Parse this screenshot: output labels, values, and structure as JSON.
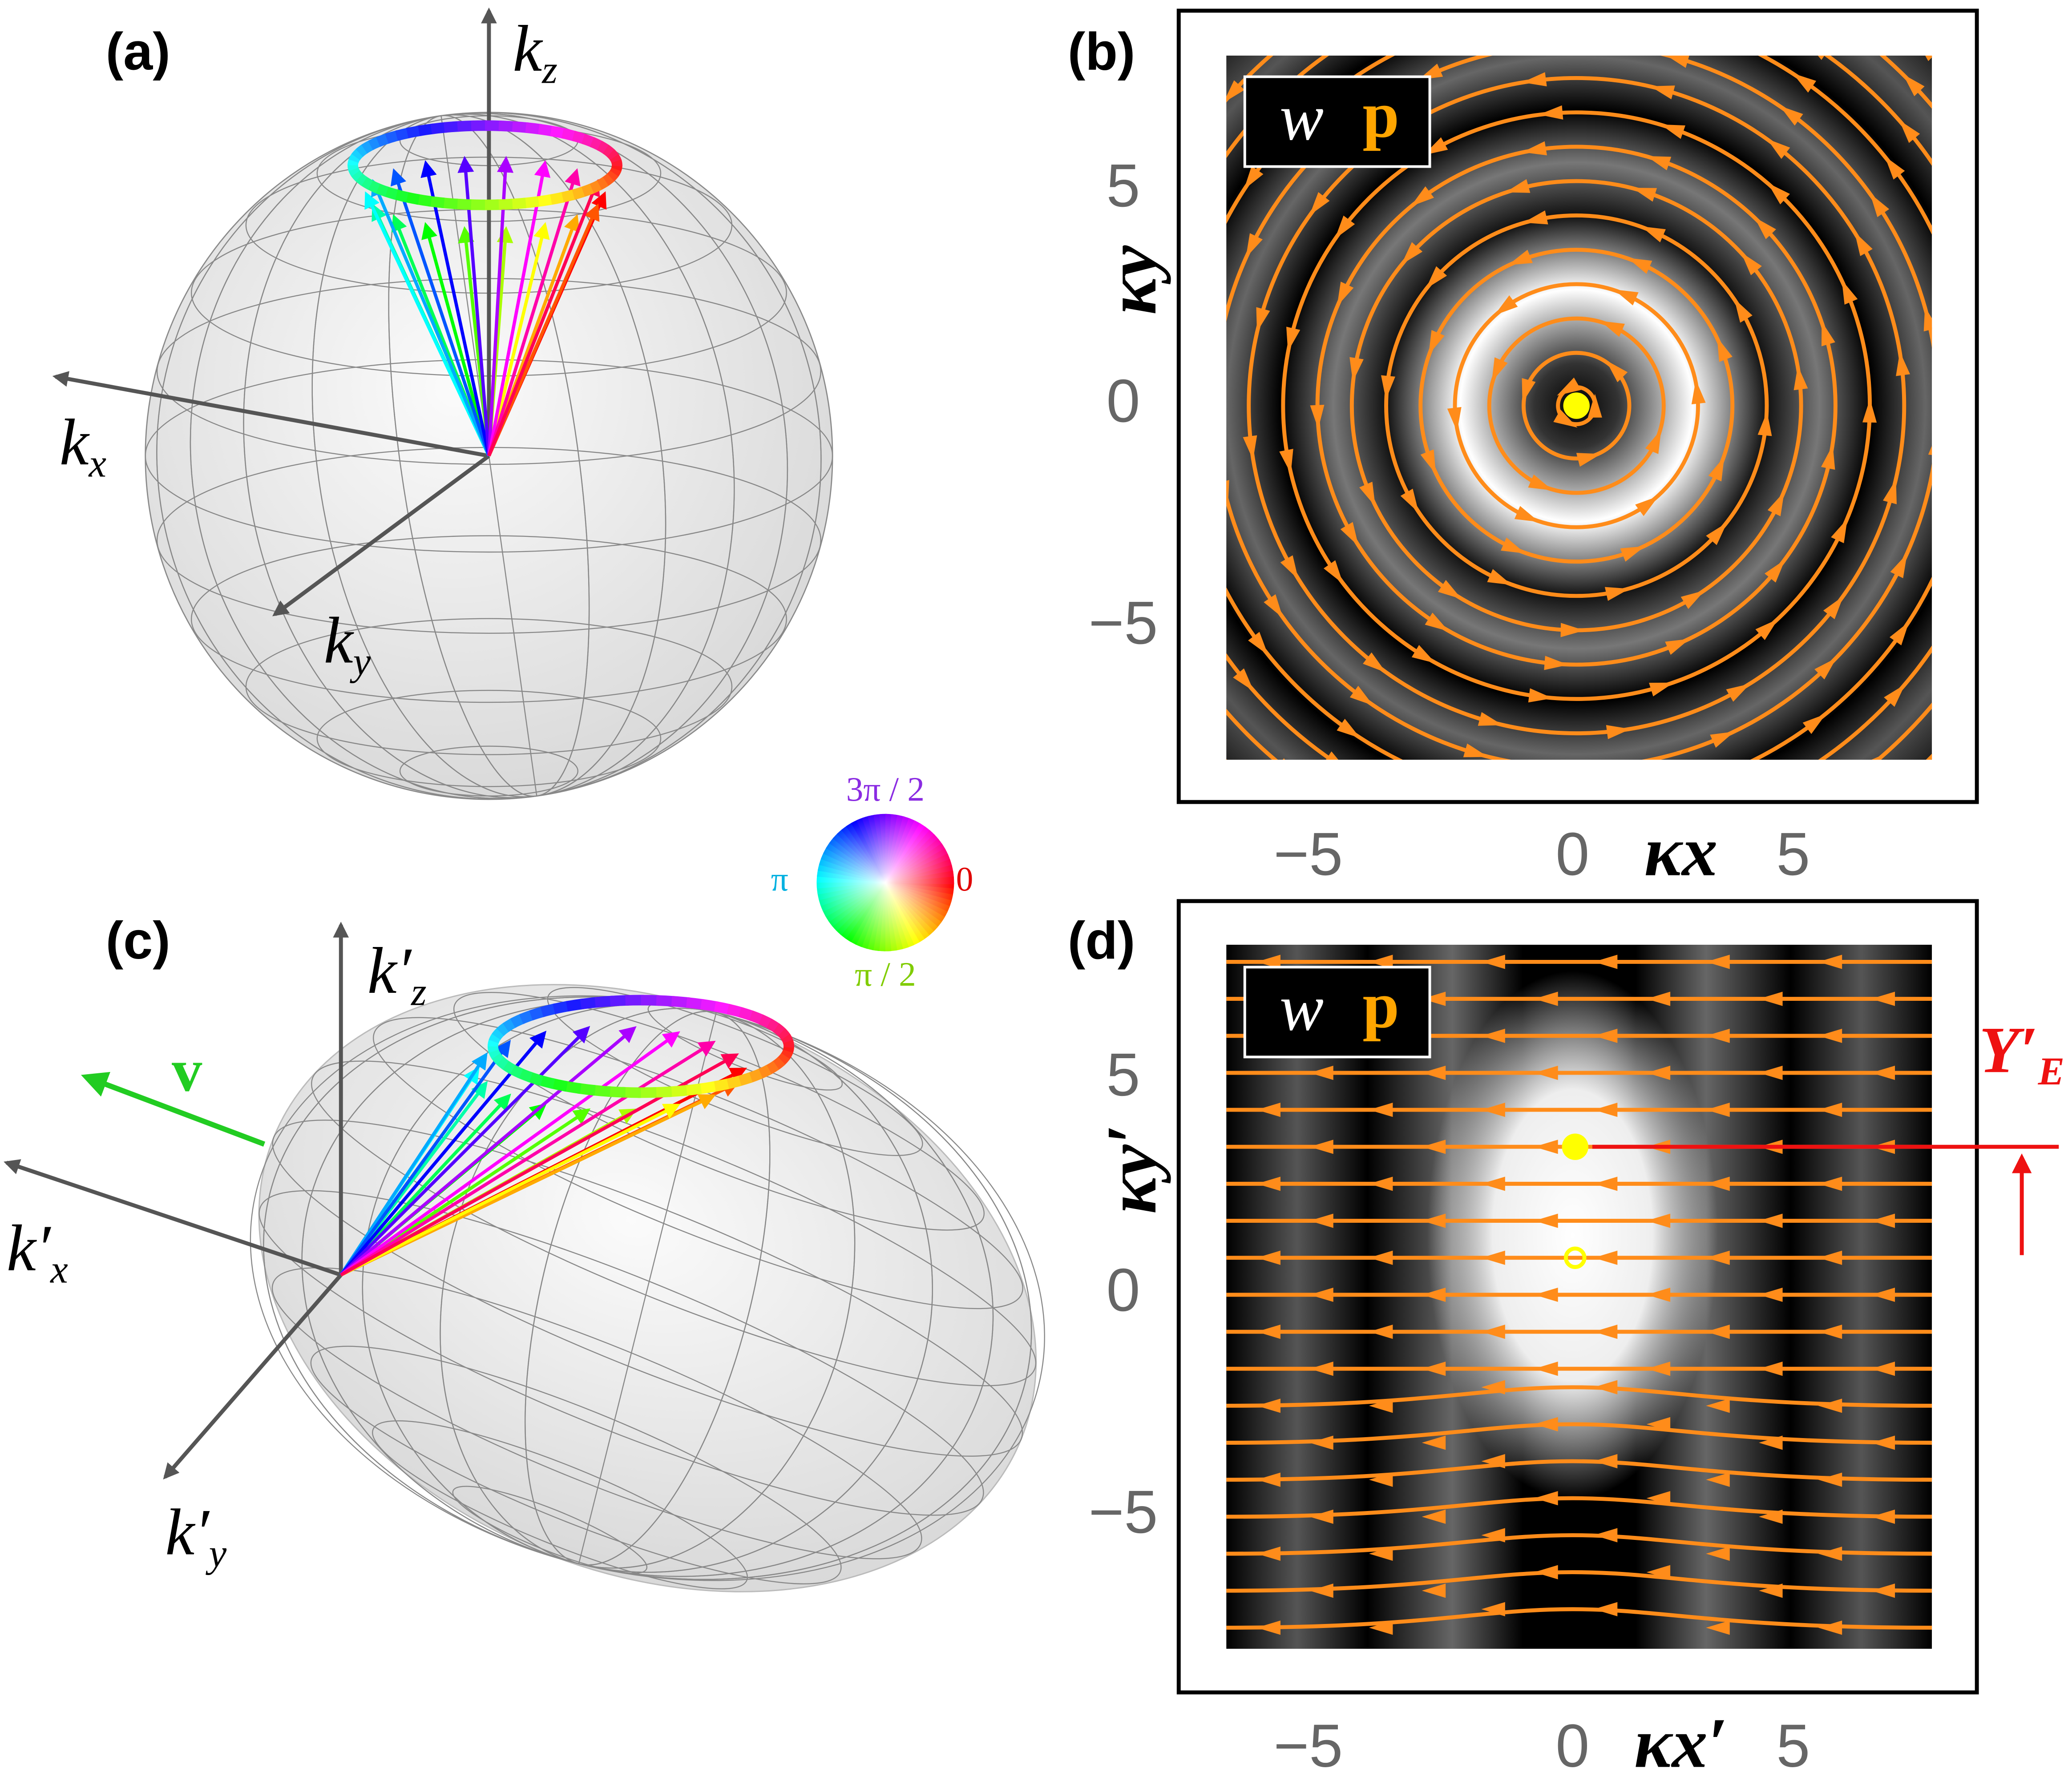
{
  "a": {
    "label": "(a)",
    "kz": {
      "k": "k",
      "sub": "z"
    },
    "kx": {
      "k": "k",
      "sub": "x"
    },
    "ky": {
      "k": "k",
      "sub": "y"
    }
  },
  "b": {
    "label": "(b)",
    "legend": {
      "w": "w",
      "p": "p"
    },
    "ylabel": "κy",
    "xlabel": "κx",
    "xticks": [
      "−5",
      "0",
      "5"
    ],
    "yticks": [
      "5",
      "0",
      "−5"
    ]
  },
  "wheel": {
    "top": "3π / 2",
    "left": "π",
    "right": "0",
    "bottom": "π / 2"
  },
  "c": {
    "label": "(c)",
    "kz": {
      "k": "k′",
      "sub": "z"
    },
    "kx": {
      "k": "k′",
      "sub": "x"
    },
    "ky": {
      "k": "k′",
      "sub": "y"
    },
    "velocity": "v"
  },
  "d": {
    "label": "(d)",
    "legend": {
      "w": "w",
      "p": "p"
    },
    "ylabel": "κy′",
    "xlabel": "κx′",
    "xticks": [
      "−5",
      "0",
      "5"
    ],
    "yticks": [
      "5",
      "0",
      "−5"
    ],
    "annotation": {
      "k": "Y′",
      "sub": "E"
    }
  }
}
